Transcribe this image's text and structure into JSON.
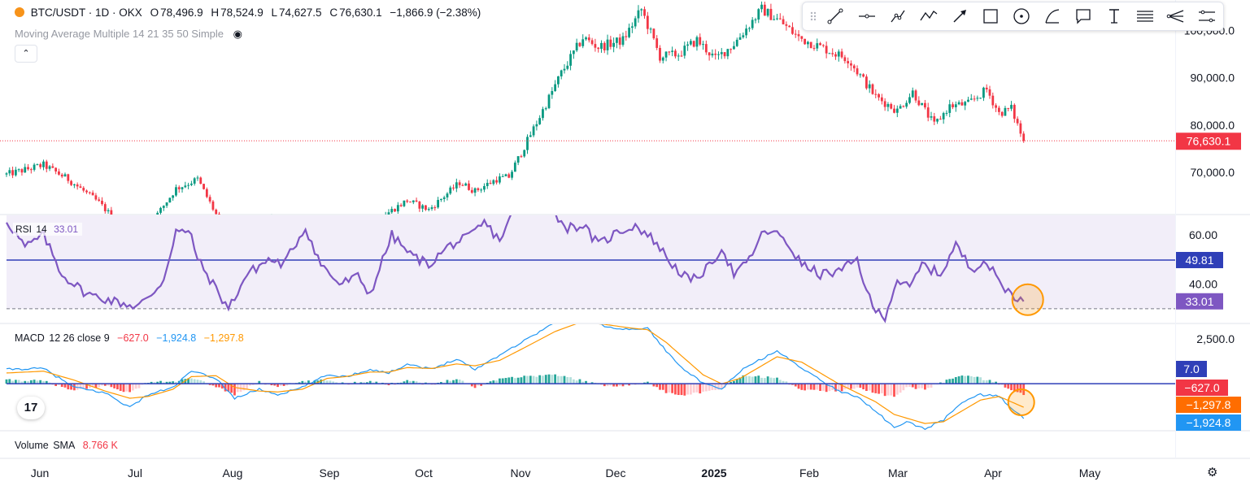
{
  "header": {
    "symbol": "BTC/USDT · 1D · OKX",
    "open_label": "O",
    "open": "78,496.9",
    "high_label": "H",
    "high": "78,524.9",
    "low_label": "L",
    "low": "74,627.5",
    "close_label": "C",
    "close": "76,630.1",
    "change": "−1,866.9 (−2.38%)"
  },
  "ma_legend": "Moving Average Multiple 14 21 35 50 Simple",
  "rsi_legend": {
    "name": "RSI",
    "period": "14",
    "value": "33.01"
  },
  "macd_legend": {
    "name": "MACD",
    "params": "12 26 close 9",
    "hist": "−627.0",
    "macd": "−1,924.8",
    "signal": "−1,297.8"
  },
  "volume_legend": {
    "name": "Volume",
    "sma_label": "SMA",
    "value": "8.766 K"
  },
  "colors": {
    "up": "#089981",
    "down": "#f23645",
    "rsi": "#7e57c2",
    "macd": "#2196f3",
    "signal": "#ff9800",
    "level": "#2f3fb8"
  },
  "toolbar_icons": [
    "drag-handle-icon",
    "trend-line-icon",
    "horizontal-ray-icon",
    "polyline-icon",
    "path-icon",
    "arrow-icon",
    "rectangle-icon",
    "circle-icon",
    "curve-icon",
    "callout-icon",
    "text-icon",
    "fib-retracement-icon",
    "pitchfork-icon",
    "parallel-channel-icon"
  ],
  "chart_data": [
    {
      "type": "candlestick",
      "title": "BTC/USDT · 1D · OKX",
      "x_ticks": [
        "Jun",
        "Jul",
        "Aug",
        "Sep",
        "Oct",
        "Nov",
        "Dec",
        "2025",
        "Feb",
        "Mar",
        "Apr",
        "May"
      ],
      "y_ticks": [
        "100,000.0",
        "90,000.0",
        "80,000.0",
        "70,000.0"
      ],
      "ylim": [
        61000,
        106500
      ],
      "last_price": "76,630.1",
      "last_price_value": 76630.1,
      "anchors": [
        [
          0,
          69500
        ],
        [
          12,
          71500
        ],
        [
          20,
          68500
        ],
        [
          30,
          63500
        ],
        [
          38,
          58000
        ],
        [
          45,
          57500
        ],
        [
          55,
          66500
        ],
        [
          62,
          68500
        ],
        [
          70,
          58500
        ],
        [
          80,
          57000
        ],
        [
          86,
          60000
        ],
        [
          95,
          54000
        ],
        [
          104,
          58500
        ],
        [
          114,
          58800
        ],
        [
          124,
          61500
        ],
        [
          130,
          64000
        ],
        [
          137,
          62000
        ],
        [
          147,
          67800
        ],
        [
          152,
          66000
        ],
        [
          159,
          68500
        ],
        [
          163,
          69000
        ],
        [
          172,
          80500
        ],
        [
          180,
          91000
        ],
        [
          187,
          98500
        ],
        [
          192,
          96500
        ],
        [
          200,
          98000
        ],
        [
          206,
          104500
        ],
        [
          212,
          94500
        ],
        [
          218,
          95000
        ],
        [
          224,
          98000
        ],
        [
          230,
          94000
        ],
        [
          236,
          97200
        ],
        [
          245,
          104500
        ],
        [
          251,
          102000
        ],
        [
          257,
          98500
        ],
        [
          266,
          96000
        ],
        [
          273,
          94000
        ],
        [
          282,
          86000
        ],
        [
          289,
          83000
        ],
        [
          294,
          87000
        ],
        [
          301,
          80000
        ],
        [
          306,
          84000
        ],
        [
          312,
          84500
        ],
        [
          318,
          87500
        ],
        [
          322,
          82500
        ],
        [
          326,
          83500
        ],
        [
          330,
          76600
        ]
      ]
    },
    {
      "type": "line",
      "title": "RSI 14",
      "ylim": [
        24,
        68
      ],
      "y_ticks": [
        "60.00",
        "40.00"
      ],
      "level": 49.81,
      "lower_band": 30,
      "value": 33.01,
      "anchors": [
        [
          0,
          66
        ],
        [
          6,
          55
        ],
        [
          12,
          60
        ],
        [
          18,
          44
        ],
        [
          26,
          36
        ],
        [
          35,
          33
        ],
        [
          42,
          31
        ],
        [
          46,
          34
        ],
        [
          51,
          42
        ],
        [
          55,
          62
        ],
        [
          60,
          60
        ],
        [
          62,
          50
        ],
        [
          67,
          40
        ],
        [
          72,
          30
        ],
        [
          78,
          44
        ],
        [
          85,
          50
        ],
        [
          90,
          48
        ],
        [
          94,
          57
        ],
        [
          97,
          63
        ],
        [
          102,
          48
        ],
        [
          108,
          40
        ],
        [
          114,
          43
        ],
        [
          118,
          36
        ],
        [
          125,
          60
        ],
        [
          131,
          52
        ],
        [
          137,
          48
        ],
        [
          144,
          56
        ],
        [
          150,
          59
        ],
        [
          155,
          65
        ],
        [
          160,
          58
        ],
        [
          166,
          73
        ],
        [
          175,
          72
        ],
        [
          182,
          63
        ],
        [
          187,
          64
        ],
        [
          192,
          56
        ],
        [
          198,
          61
        ],
        [
          204,
          64
        ],
        [
          210,
          58
        ],
        [
          216,
          48
        ],
        [
          222,
          41
        ],
        [
          228,
          47
        ],
        [
          232,
          55
        ],
        [
          236,
          44
        ],
        [
          240,
          48
        ],
        [
          246,
          62
        ],
        [
          252,
          59
        ],
        [
          258,
          48
        ],
        [
          264,
          44
        ],
        [
          270,
          45
        ],
        [
          276,
          50
        ],
        [
          281,
          30
        ],
        [
          285,
          27
        ],
        [
          289,
          42
        ],
        [
          293,
          38
        ],
        [
          297,
          48
        ],
        [
          303,
          44
        ],
        [
          308,
          56
        ],
        [
          313,
          46
        ],
        [
          317,
          50
        ],
        [
          320,
          45
        ],
        [
          324,
          38
        ],
        [
          330,
          33
        ]
      ]
    },
    {
      "type": "line",
      "title": "MACD 12 26 close 9",
      "ylim": [
        -2600,
        3300
      ],
      "y_ticks": [
        "2,500.0"
      ],
      "zero_line": 7.0,
      "histogram": -627.0,
      "macd": -1924.8,
      "signal": -1297.8,
      "macd_anchors": [
        [
          0,
          800
        ],
        [
          12,
          850
        ],
        [
          22,
          -200
        ],
        [
          32,
          -500
        ],
        [
          40,
          -1300
        ],
        [
          46,
          -600
        ],
        [
          54,
          -200
        ],
        [
          60,
          700
        ],
        [
          68,
          300
        ],
        [
          74,
          -800
        ],
        [
          82,
          -300
        ],
        [
          88,
          -600
        ],
        [
          96,
          -200
        ],
        [
          104,
          500
        ],
        [
          110,
          400
        ],
        [
          118,
          800
        ],
        [
          124,
          600
        ],
        [
          130,
          1100
        ],
        [
          138,
          800
        ],
        [
          146,
          1400
        ],
        [
          152,
          800
        ],
        [
          160,
          1600
        ],
        [
          168,
          2400
        ],
        [
          178,
          3400
        ],
        [
          186,
          3600
        ],
        [
          194,
          3200
        ],
        [
          202,
          3000
        ],
        [
          208,
          3100
        ],
        [
          214,
          1800
        ],
        [
          220,
          800
        ],
        [
          226,
          0
        ],
        [
          232,
          -300
        ],
        [
          238,
          700
        ],
        [
          244,
          1300
        ],
        [
          250,
          1800
        ],
        [
          258,
          900
        ],
        [
          264,
          200
        ],
        [
          270,
          -400
        ],
        [
          276,
          -700
        ],
        [
          282,
          -1500
        ],
        [
          288,
          -2450
        ],
        [
          292,
          -2100
        ],
        [
          298,
          -2500
        ],
        [
          304,
          -2000
        ],
        [
          310,
          -1000
        ],
        [
          316,
          -600
        ],
        [
          322,
          -700
        ],
        [
          330,
          -1925
        ]
      ],
      "signal_anchors": [
        [
          0,
          600
        ],
        [
          12,
          700
        ],
        [
          22,
          200
        ],
        [
          32,
          -400
        ],
        [
          40,
          -800
        ],
        [
          46,
          -700
        ],
        [
          54,
          -300
        ],
        [
          60,
          400
        ],
        [
          68,
          450
        ],
        [
          74,
          -200
        ],
        [
          82,
          -400
        ],
        [
          88,
          -450
        ],
        [
          96,
          -300
        ],
        [
          104,
          300
        ],
        [
          110,
          400
        ],
        [
          118,
          650
        ],
        [
          124,
          650
        ],
        [
          130,
          900
        ],
        [
          138,
          850
        ],
        [
          146,
          1100
        ],
        [
          152,
          1000
        ],
        [
          160,
          1300
        ],
        [
          168,
          2000
        ],
        [
          178,
          2900
        ],
        [
          186,
          3400
        ],
        [
          194,
          3300
        ],
        [
          202,
          3100
        ],
        [
          208,
          3000
        ],
        [
          214,
          2300
        ],
        [
          220,
          1400
        ],
        [
          226,
          500
        ],
        [
          232,
          0
        ],
        [
          238,
          300
        ],
        [
          244,
          900
        ],
        [
          250,
          1500
        ],
        [
          258,
          1200
        ],
        [
          264,
          600
        ],
        [
          270,
          0
        ],
        [
          276,
          -500
        ],
        [
          282,
          -1000
        ],
        [
          288,
          -1700
        ],
        [
          292,
          -1900
        ],
        [
          298,
          -2200
        ],
        [
          304,
          -2100
        ],
        [
          310,
          -1500
        ],
        [
          316,
          -900
        ],
        [
          322,
          -700
        ],
        [
          330,
          -1298
        ]
      ]
    }
  ]
}
